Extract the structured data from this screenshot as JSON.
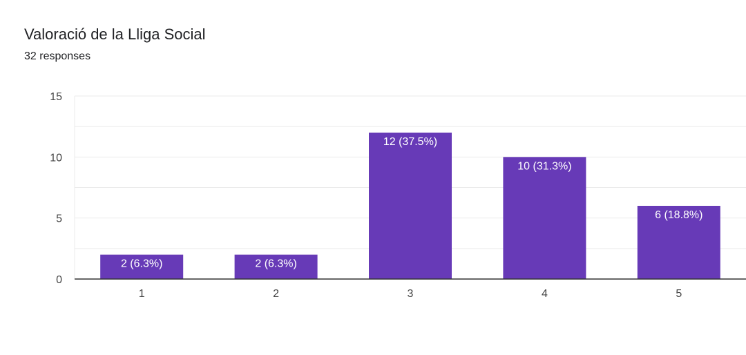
{
  "header": {
    "title": "Valoració de la Lliga Social",
    "responses": "32 responses"
  },
  "colors": {
    "bar": "#673ab7",
    "grid": "#ebebeb",
    "axis": "#333333"
  },
  "chart_data": {
    "type": "bar",
    "title": "Valoració de la Lliga Social",
    "xlabel": "",
    "ylabel": "",
    "categories": [
      "1",
      "2",
      "3",
      "4",
      "5"
    ],
    "values": [
      2,
      2,
      12,
      10,
      6
    ],
    "data_labels": [
      "2 (6.3%)",
      "2 (6.3%)",
      "12 (37.5%)",
      "10 (31.3%)",
      "6 (18.8%)"
    ],
    "ylim": [
      0,
      15
    ],
    "yticks": [
      "0",
      "5",
      "10",
      "15"
    ],
    "grid": true,
    "legend": "none"
  }
}
